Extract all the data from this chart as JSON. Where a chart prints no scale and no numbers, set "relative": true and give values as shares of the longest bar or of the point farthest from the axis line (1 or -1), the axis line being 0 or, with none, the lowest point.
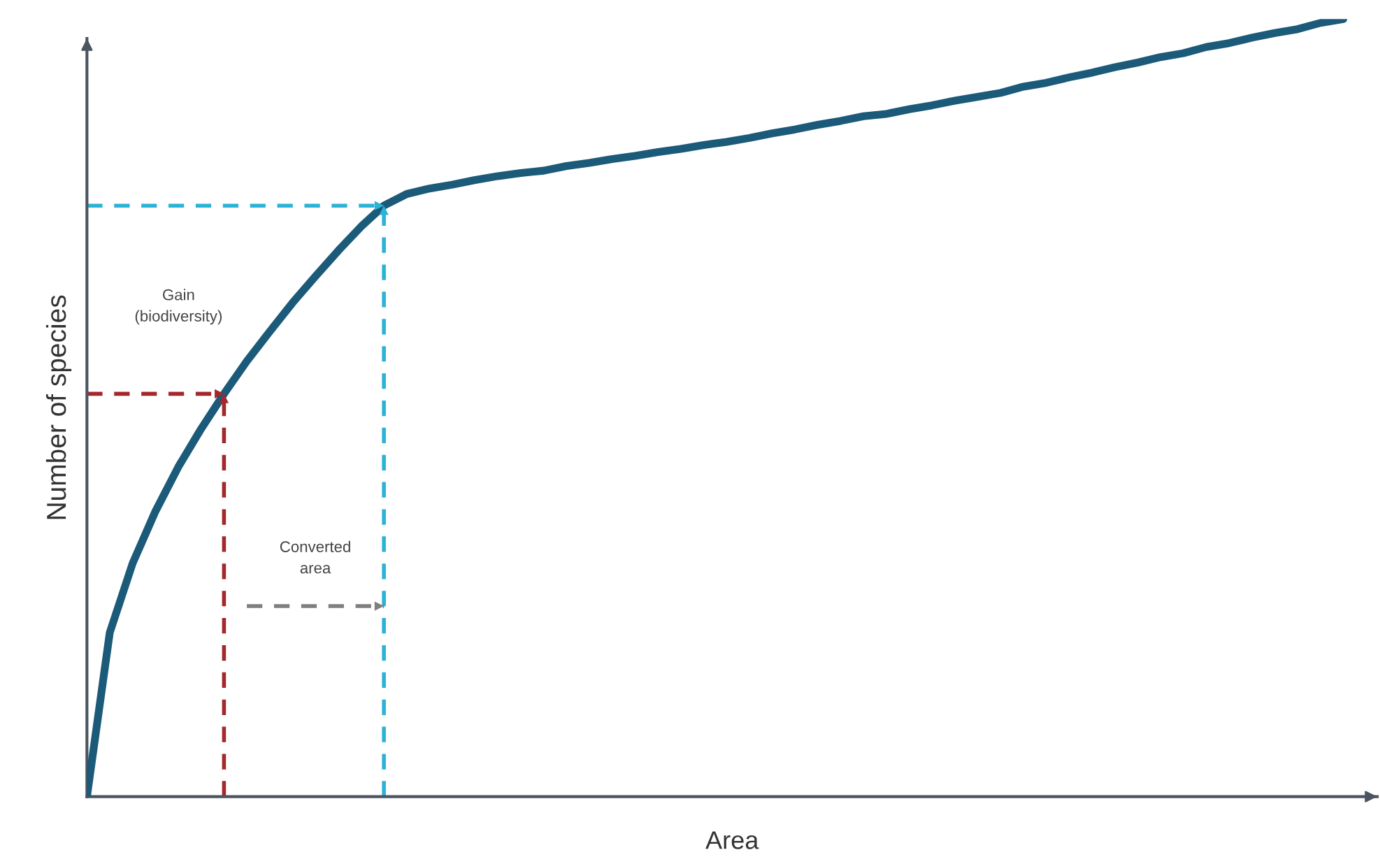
{
  "chart_data": {
    "type": "line",
    "relative": true,
    "xlabel": "Area",
    "ylabel": "Number of species",
    "categories": [
      null,
      null,
      null,
      null,
      null,
      null,
      null,
      null,
      null,
      null,
      null,
      null,
      null,
      null,
      null,
      null,
      null,
      null,
      null,
      null,
      null,
      null,
      null,
      null,
      null,
      null,
      null,
      null,
      null,
      null,
      null,
      null,
      null,
      null,
      null,
      null,
      null,
      null,
      null,
      null,
      null,
      null,
      null,
      null,
      null,
      null,
      null,
      null,
      null,
      null,
      null,
      null,
      null,
      null,
      null,
      null
    ],
    "series": [
      {
        "color": "#1b5a78",
        "line_style": "solid",
        "values": [
          0,
          0.211,
          0.3,
          0.367,
          0.424,
          0.473,
          0.518,
          0.56,
          0.598,
          0.635,
          0.669,
          0.702,
          0.733,
          0.76,
          0.775,
          0.782,
          0.787,
          0.793,
          0.798,
          0.802,
          0.805,
          0.811,
          0.815,
          0.82,
          0.824,
          0.829,
          0.833,
          0.838,
          0.842,
          0.847,
          0.853,
          0.858,
          0.864,
          0.869,
          0.875,
          0.878,
          0.884,
          0.889,
          0.895,
          0.9,
          0.905,
          0.913,
          0.918,
          0.925,
          0.931,
          0.938,
          0.944,
          0.951,
          0.956,
          0.964,
          0.969,
          0.976,
          0.982,
          0.987,
          0.995,
          1.0
        ]
      },
      {
        "color": "#a3282c",
        "line_style": "dashed",
        "values": [
          0.518,
          0.518,
          0.518,
          0.518,
          0.518,
          0.518,
          0.518,
          null,
          null,
          null,
          null,
          null,
          null,
          null,
          null,
          null,
          null,
          null,
          null,
          null,
          null,
          null,
          null,
          null,
          null,
          null,
          null,
          null,
          null,
          null,
          null,
          null,
          null,
          null,
          null,
          null,
          null,
          null,
          null,
          null,
          null,
          null,
          null,
          null,
          null,
          null,
          null,
          null,
          null,
          null,
          null,
          null,
          null,
          null,
          null,
          null
        ]
      },
      {
        "color": "#2bb3d6",
        "line_style": "dashed",
        "values": [
          0.76,
          0.76,
          0.76,
          0.76,
          0.76,
          0.76,
          0.76,
          0.76,
          0.76,
          0.76,
          0.76,
          0.76,
          0.76,
          0.76,
          null,
          null,
          null,
          null,
          null,
          null,
          null,
          null,
          null,
          null,
          null,
          null,
          null,
          null,
          null,
          null,
          null,
          null,
          null,
          null,
          null,
          null,
          null,
          null,
          null,
          null,
          null,
          null,
          null,
          null,
          null,
          null,
          null,
          null,
          null,
          null,
          null,
          null,
          null,
          null,
          null,
          null
        ]
      },
      {
        "color": "#7f7f7f",
        "line_style": "dashed",
        "values": [
          null,
          null,
          null,
          null,
          null,
          null,
          null,
          0.245,
          0.245,
          0.245,
          0.245,
          0.245,
          0.245,
          0.245,
          null,
          null,
          null,
          null,
          null,
          null,
          null,
          null,
          null,
          null,
          null,
          null,
          null,
          null,
          null,
          null,
          null,
          null,
          null,
          null,
          null,
          null,
          null,
          null,
          null,
          null,
          null,
          null,
          null,
          null,
          null,
          null,
          null,
          null,
          null,
          null,
          null,
          null,
          null,
          null,
          null,
          null
        ]
      }
    ],
    "annotations": [
      "Gain\n(biodiversity)",
      "Converted\narea"
    ]
  }
}
